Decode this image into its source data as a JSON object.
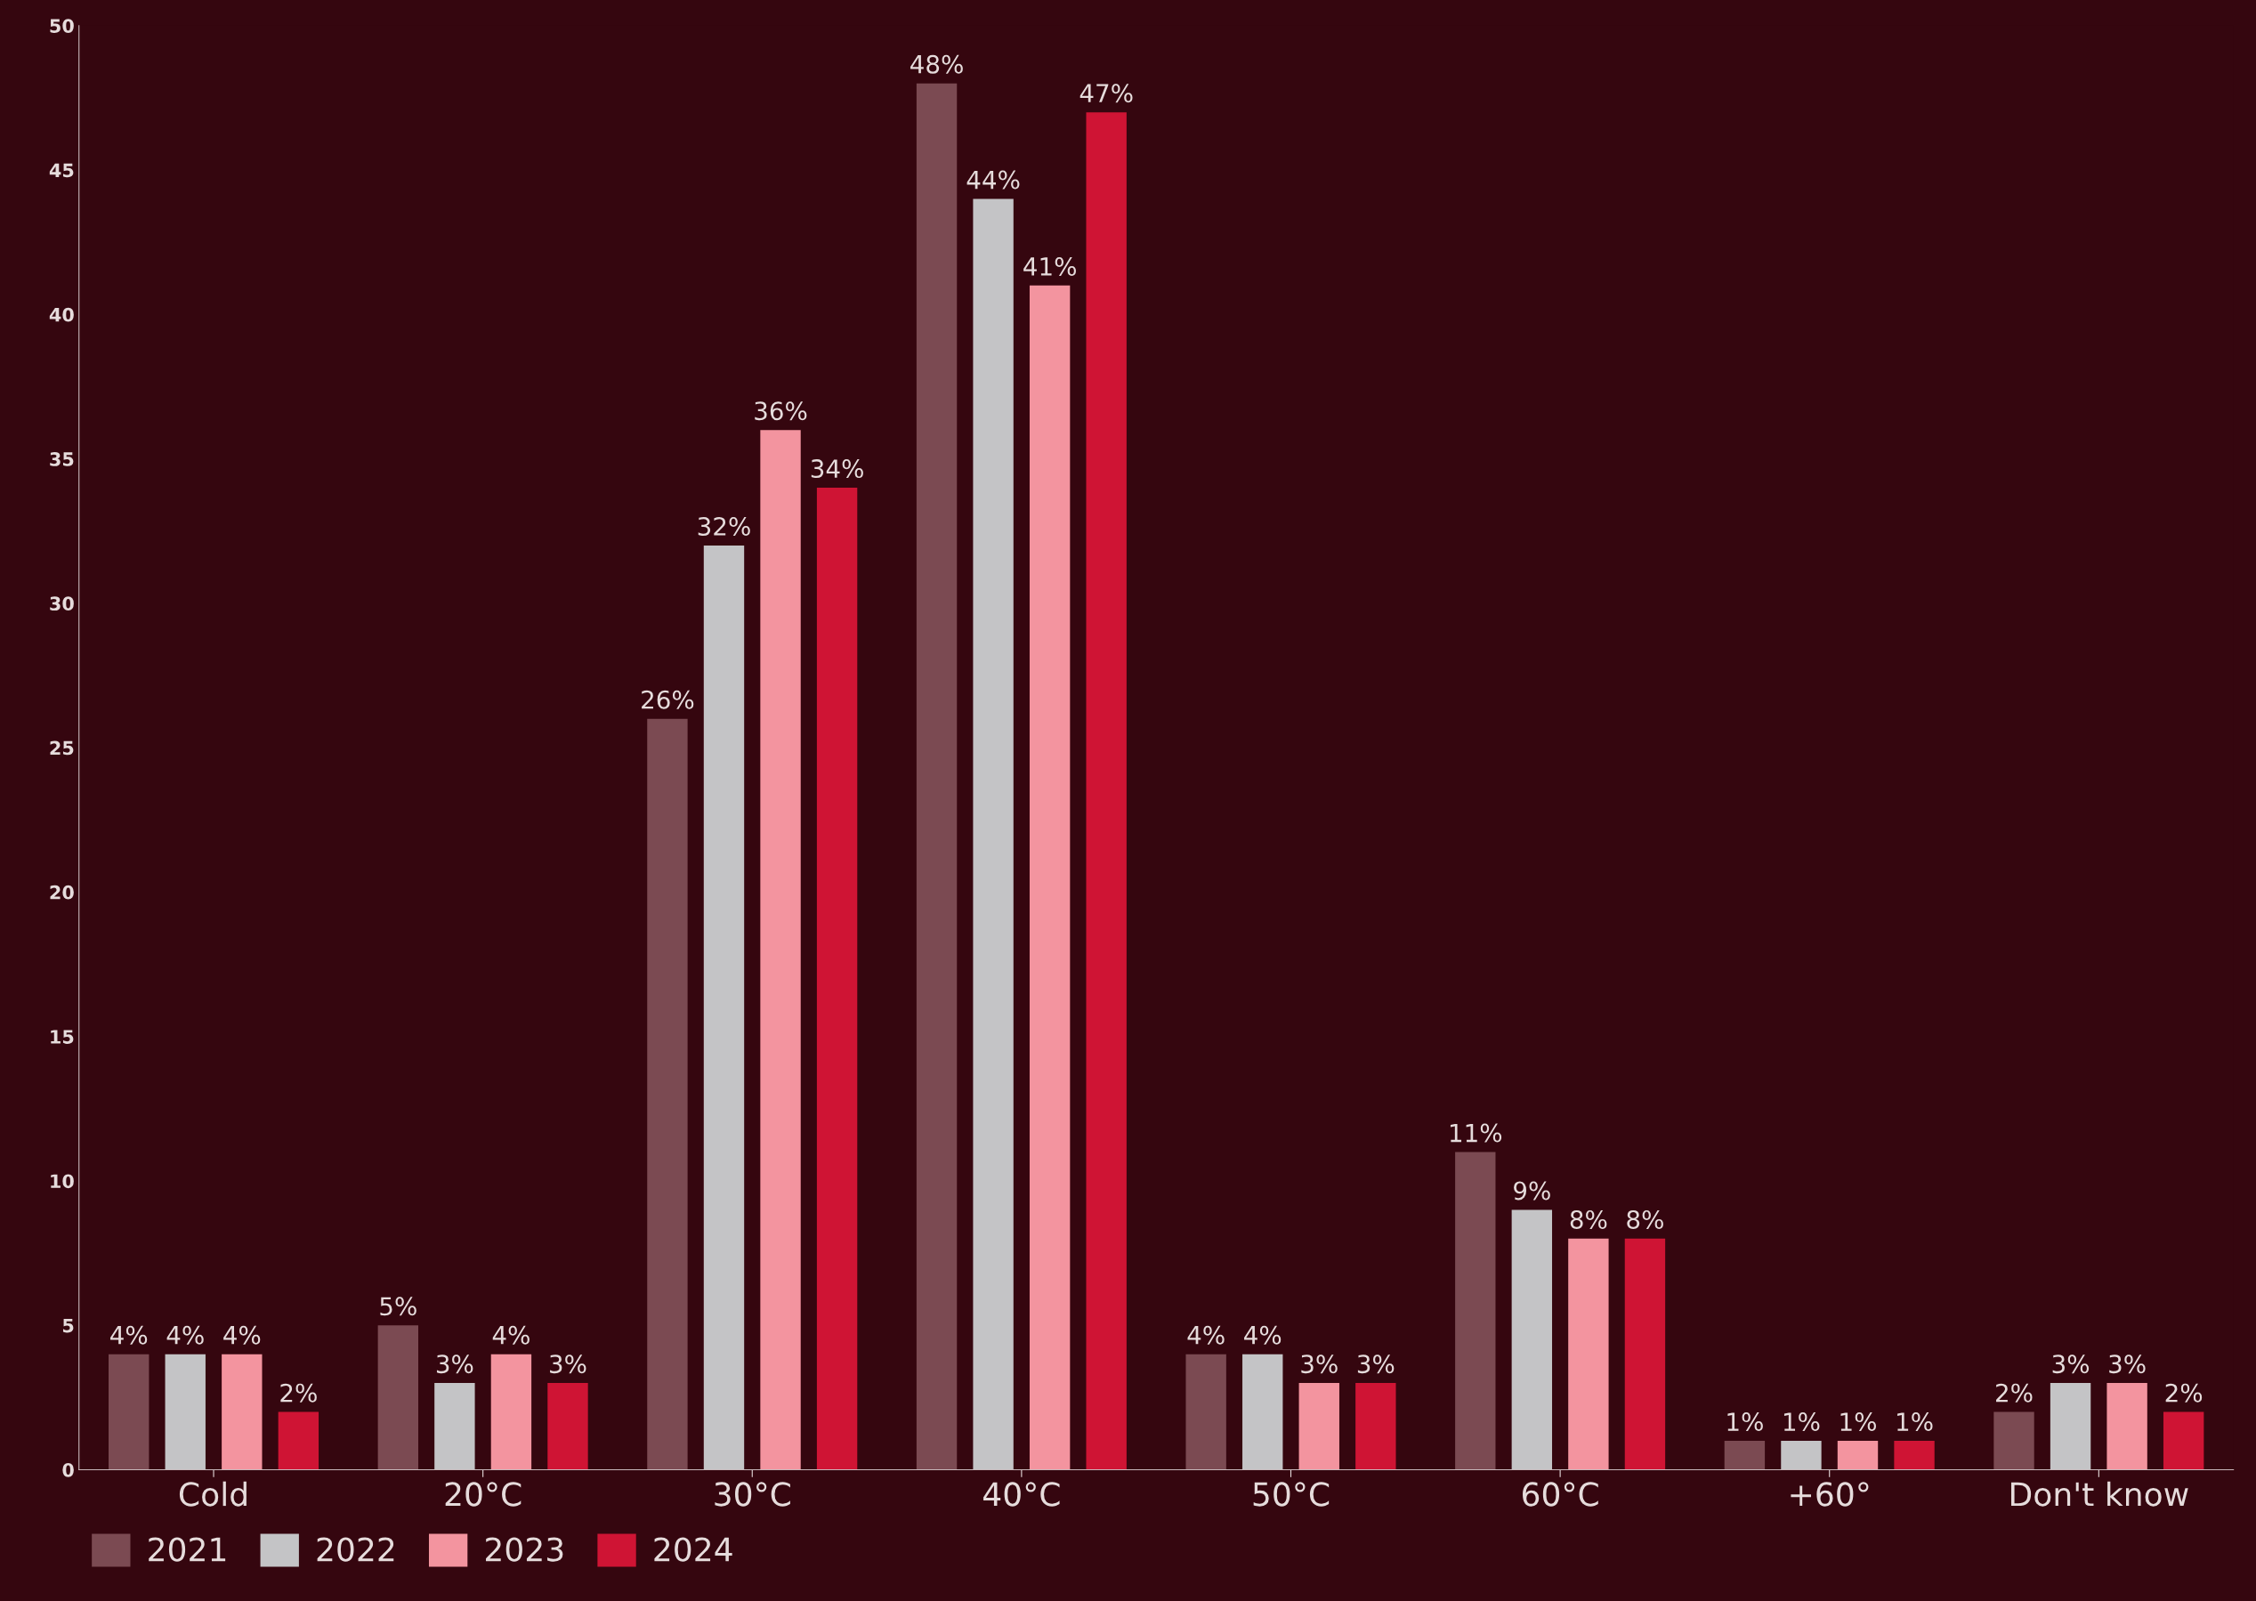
{
  "chart_data": {
    "type": "bar",
    "categories": [
      "Cold",
      "20°C",
      "30°C",
      "40°C",
      "50°C",
      "60°C",
      "+60°",
      "Don't know"
    ],
    "series": [
      {
        "name": "2021",
        "color": "#7b4a52",
        "values": [
          4,
          5,
          26,
          48,
          4,
          11,
          1,
          2
        ],
        "value_labels": [
          "4%",
          "5%",
          "26%",
          "48%",
          "4%",
          "11%",
          "1%",
          "2%"
        ]
      },
      {
        "name": "2022",
        "color": "#c4c4c6",
        "values": [
          4,
          3,
          32,
          44,
          4,
          9,
          1,
          3
        ],
        "value_labels": [
          "4%",
          "3%",
          "32%",
          "44%",
          "4%",
          "9%",
          "1%",
          "3%"
        ]
      },
      {
        "name": "2023",
        "color": "#f3949f",
        "values": [
          4,
          4,
          36,
          41,
          3,
          8,
          1,
          3
        ],
        "value_labels": [
          "4%",
          "4%",
          "36%",
          "41%",
          "3%",
          "8%",
          "1%",
          "3%"
        ]
      },
      {
        "name": "2024",
        "color": "#cf1434",
        "values": [
          2,
          3,
          34,
          47,
          3,
          8,
          1,
          2
        ],
        "value_labels": [
          "2%",
          "3%",
          "34%",
          "47%",
          "3%",
          "8%",
          "1%",
          "2%"
        ]
      }
    ],
    "ylim": [
      0,
      50
    ],
    "yticks": [
      0,
      5,
      10,
      15,
      20,
      25,
      30,
      35,
      40,
      45,
      50
    ],
    "grid": false,
    "legend": "bottom left"
  }
}
